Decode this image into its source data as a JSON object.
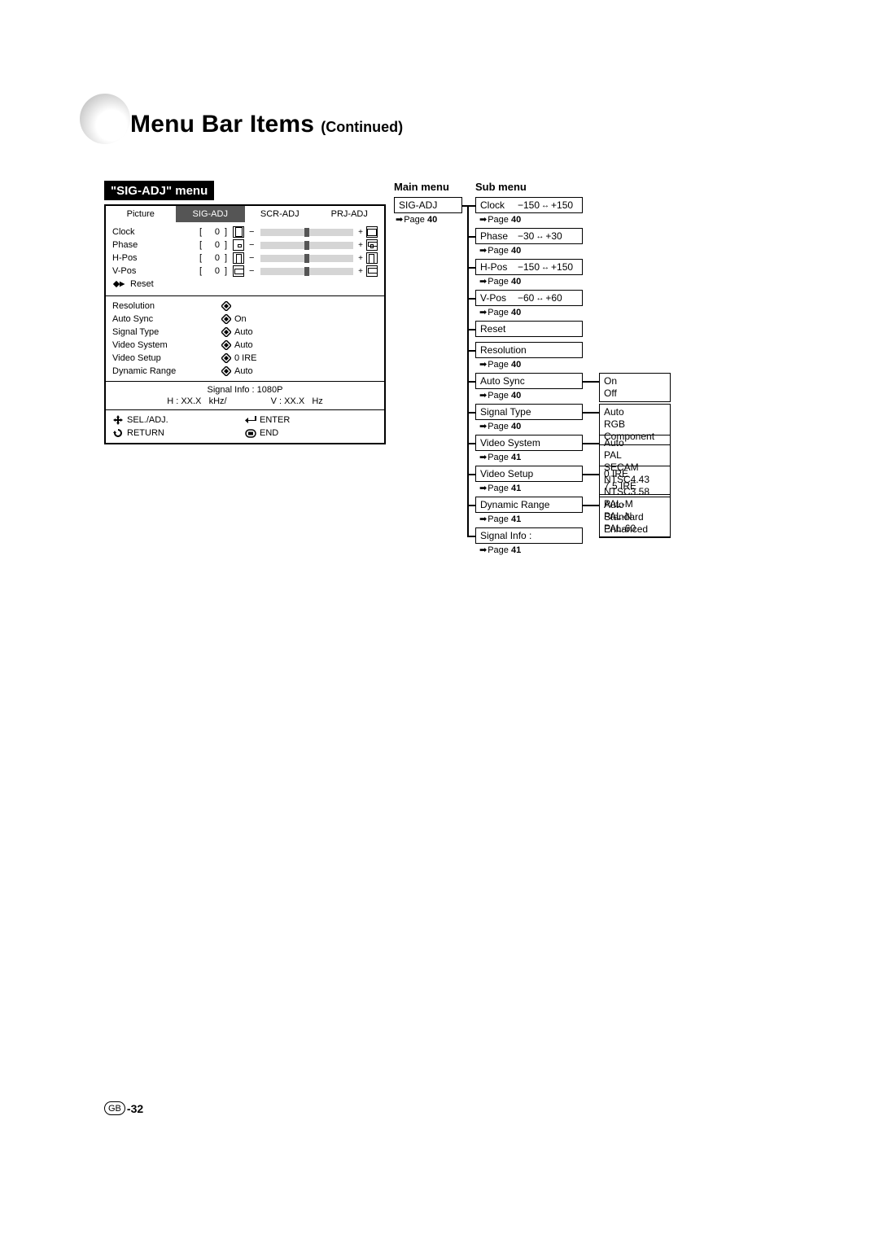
{
  "title": {
    "main": "Menu Bar Items",
    "continued": "(Continued)"
  },
  "osd": {
    "heading": "\"SIG-ADJ\" menu",
    "tabs": [
      "Picture",
      "SIG-ADJ",
      "SCR-ADJ",
      "PRJ-ADJ"
    ],
    "active_tab_index": 1,
    "sliders": [
      {
        "label": "Clock",
        "value": "0"
      },
      {
        "label": "Phase",
        "value": "0"
      },
      {
        "label": "H-Pos",
        "value": "0"
      },
      {
        "label": "V-Pos",
        "value": "0"
      }
    ],
    "reset_label": "Reset",
    "list_items": [
      {
        "label": "Resolution",
        "value": ""
      },
      {
        "label": "Auto Sync",
        "value": "On"
      },
      {
        "label": "Signal Type",
        "value": "Auto"
      },
      {
        "label": "Video System",
        "value": "Auto"
      },
      {
        "label": "Video Setup",
        "value": "0 IRE"
      },
      {
        "label": "Dynamic Range",
        "value": "Auto"
      }
    ],
    "signal_info": {
      "title": "Signal Info : 1080P",
      "h_label": "H : XX.X",
      "h_unit": "kHz/",
      "v_label": "V : XX.X",
      "v_unit": "Hz"
    },
    "footer": {
      "sel": "SEL./ADJ.",
      "enter": "ENTER",
      "return": "RETURN",
      "end": "END"
    }
  },
  "tree": {
    "main_label": "Main menu",
    "sub_label": "Sub menu",
    "main_item": {
      "label": "SIG-ADJ",
      "page_text": "Page",
      "page_num": "40"
    },
    "sub_items": [
      {
        "type": "range",
        "label": "Clock",
        "low": "−150",
        "high": "+150",
        "page": "40",
        "opts": null
      },
      {
        "type": "range",
        "label": "Phase",
        "low": "−30",
        "high": "+30",
        "page": "40",
        "opts": null
      },
      {
        "type": "range",
        "label": "H-Pos",
        "low": "−150",
        "high": "+150",
        "page": "40",
        "opts": null
      },
      {
        "type": "range",
        "label": "V-Pos",
        "low": "−60",
        "high": "+60",
        "page": "40",
        "opts": null
      },
      {
        "type": "plain",
        "label": "Reset",
        "page": null,
        "opts": null
      },
      {
        "type": "plain",
        "label": "Resolution",
        "page": "40",
        "opts": null
      },
      {
        "type": "plain",
        "label": "Auto Sync",
        "page": "40",
        "opts": [
          "On",
          "Off"
        ]
      },
      {
        "type": "plain",
        "label": "Signal Type",
        "page": "40",
        "opts": [
          "Auto",
          "RGB",
          "Component"
        ]
      },
      {
        "type": "plain",
        "label": "Video System",
        "page": "41",
        "opts": [
          "Auto",
          "PAL",
          "SECAM",
          "NTSC4.43",
          "NTSC3.58",
          "PAL-M",
          "PAL-N",
          "PAL-60"
        ]
      },
      {
        "type": "plain",
        "label": "Video Setup",
        "page": "41",
        "opts": [
          "0 IRE",
          "7.5 IRE"
        ]
      },
      {
        "type": "plain",
        "label": "Dynamic Range",
        "page": "41",
        "opts": [
          "Auto",
          "Standard",
          "Enhanced"
        ]
      },
      {
        "type": "plain",
        "label": "Signal Info   :",
        "page": "41",
        "opts": null
      }
    ],
    "page_text": "Page"
  },
  "page_number": {
    "gb": "GB",
    "num": "-32"
  },
  "colors": {
    "text": "#000000",
    "bg": "#ffffff",
    "tab_active_bg": "#555555",
    "tab_active_fg": "#ffffff",
    "bar_bg": "#d5d5d5",
    "bar_mark": "#555555"
  }
}
